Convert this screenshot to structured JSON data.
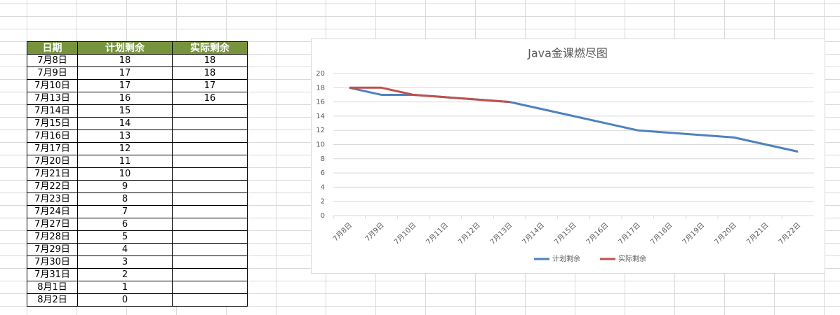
{
  "table": {
    "header": [
      "日期",
      "计划剩余",
      "实际剩余"
    ],
    "rows": [
      [
        "7月8日",
        18,
        18
      ],
      [
        "7月9日",
        17,
        18
      ],
      [
        "7月10日",
        17,
        17
      ],
      [
        "7月13日",
        16,
        16
      ],
      [
        "7月14日",
        15,
        null
      ],
      [
        "7月15日",
        14,
        null
      ],
      [
        "7月16日",
        13,
        null
      ],
      [
        "7月17日",
        12,
        null
      ],
      [
        "7月20日",
        11,
        null
      ],
      [
        "7月21日",
        10,
        null
      ],
      [
        "7月22日",
        9,
        null
      ],
      [
        "7月23日",
        8,
        null
      ],
      [
        "7月24日",
        7,
        null
      ],
      [
        "7月27日",
        6,
        null
      ],
      [
        "7月28日",
        5,
        null
      ],
      [
        "7月29日",
        4,
        null
      ],
      [
        "7月30日",
        3,
        null
      ],
      [
        "7月31日",
        2,
        null
      ],
      [
        "8月1日",
        1,
        null
      ],
      [
        "8月2日",
        0,
        null
      ]
    ]
  },
  "chart_data": {
    "type": "line",
    "title": "Java金课燃尽图",
    "x": [
      "7月8日",
      "7月9日",
      "7月10日",
      "7月13日",
      "7月14日",
      "7月15日",
      "7月16日",
      "7月17日",
      "7月20日",
      "7月21日",
      "7月22日"
    ],
    "xticks": [
      "7月8日",
      "7月9日",
      "7月10日",
      "7月11日",
      "7月12日",
      "7月13日",
      "7月14日",
      "7月15日",
      "7月16日",
      "7月17日",
      "7月18日",
      "7月19日",
      "7月20日",
      "7月21日",
      "7月22日"
    ],
    "series": [
      {
        "name": "计划剩余",
        "color": "#4f81bd",
        "values": [
          18,
          17,
          17,
          16,
          15,
          14,
          13,
          12,
          11,
          10,
          9
        ]
      },
      {
        "name": "实际剩余",
        "color": "#c0504d",
        "values": [
          18,
          18,
          17,
          16,
          null,
          null,
          null,
          null,
          null,
          null,
          null
        ]
      }
    ],
    "ylim": [
      0,
      20
    ],
    "yticks": [
      0,
      2,
      4,
      6,
      8,
      10,
      12,
      14,
      16,
      18,
      20
    ],
    "grid": true,
    "legend": "bottom"
  }
}
